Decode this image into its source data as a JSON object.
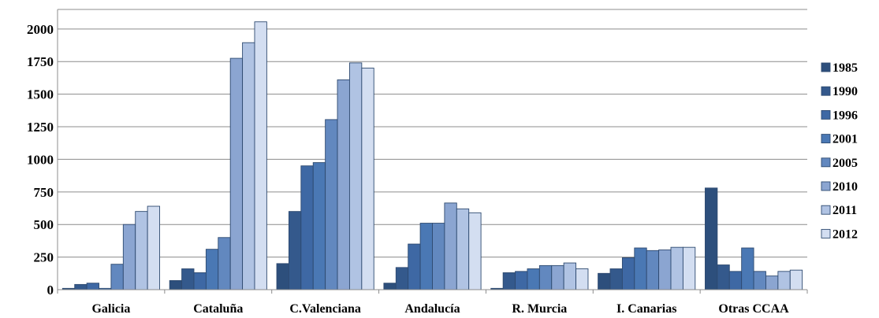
{
  "chart_data": {
    "type": "bar",
    "title": "",
    "xlabel": "",
    "ylabel": "",
    "ylim": [
      0,
      2150
    ],
    "yticks": [
      0,
      250,
      500,
      750,
      1000,
      1250,
      1500,
      1750,
      2000
    ],
    "grid": true,
    "legend_position": "right",
    "categories": [
      "Galicia",
      "Cataluña",
      "C.Valenciana",
      "Andalucía",
      "R. Murcia",
      "I. Canarias",
      "Otras CCAA"
    ],
    "series": [
      {
        "name": "1985",
        "color": "#2d4f7c",
        "values": [
          10,
          70,
          200,
          50,
          10,
          125,
          780
        ]
      },
      {
        "name": "1990",
        "color": "#34598c",
        "values": [
          40,
          160,
          600,
          170,
          130,
          160,
          190
        ]
      },
      {
        "name": "1996",
        "color": "#3e68a4",
        "values": [
          50,
          130,
          950,
          350,
          140,
          245,
          140
        ]
      },
      {
        "name": "2001",
        "color": "#4a78b4",
        "values": [
          10,
          310,
          975,
          510,
          160,
          320,
          320
        ]
      },
      {
        "name": "2005",
        "color": "#6288bf",
        "values": [
          195,
          400,
          1305,
          510,
          185,
          300,
          140
        ]
      },
      {
        "name": "2010",
        "color": "#8ba5d1",
        "values": [
          500,
          1775,
          1610,
          665,
          185,
          305,
          105
        ]
      },
      {
        "name": "2011",
        "color": "#b0c3e3",
        "values": [
          600,
          1895,
          1740,
          620,
          205,
          325,
          140
        ]
      },
      {
        "name": "2012",
        "color": "#d3def1",
        "values": [
          640,
          2055,
          1700,
          590,
          160,
          325,
          150
        ]
      }
    ]
  }
}
